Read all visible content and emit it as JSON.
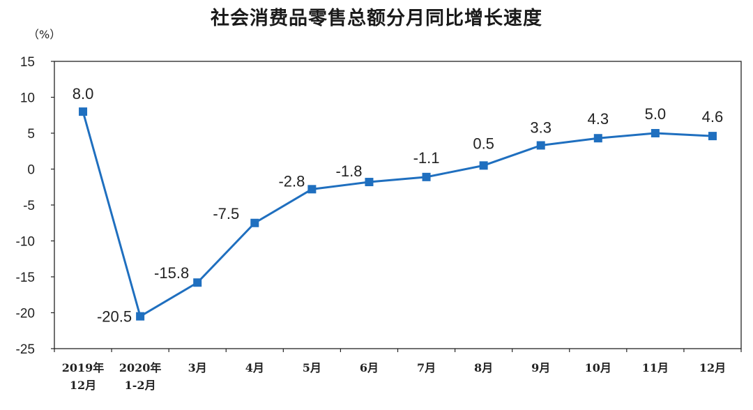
{
  "chart_data": {
    "type": "line",
    "title": "社会消费品零售总额分月同比增长速度",
    "unit_label": "（%）",
    "ylim": [
      -25,
      15
    ],
    "yticks": [
      15,
      10,
      5,
      0,
      -5,
      -10,
      -15,
      -20,
      -25
    ],
    "grid": false,
    "categories": [
      [
        "2019年",
        "12月"
      ],
      [
        "2020年",
        "1-2月"
      ],
      [
        "3月"
      ],
      [
        "4月"
      ],
      [
        "5月"
      ],
      [
        "6月"
      ],
      [
        "7月"
      ],
      [
        "8月"
      ],
      [
        "9月"
      ],
      [
        "10月"
      ],
      [
        "11月"
      ],
      [
        "12月"
      ]
    ],
    "series": [
      {
        "values": [
          8.0,
          -20.5,
          -15.8,
          -7.5,
          -2.8,
          -1.8,
          -1.1,
          0.5,
          3.3,
          4.3,
          5.0,
          4.6
        ],
        "labels": [
          "8.0",
          "-20.5",
          "-15.8",
          "-7.5",
          "-2.8",
          "-1.8",
          "-1.1",
          "0.5",
          "3.3",
          "4.3",
          "5.0",
          "4.6"
        ],
        "color": "#1f6fbf"
      }
    ]
  }
}
